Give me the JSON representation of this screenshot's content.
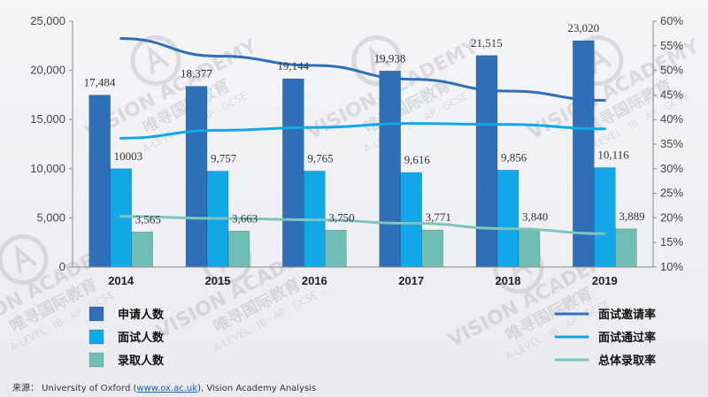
{
  "chart_data": {
    "type": "bar",
    "categories": [
      "2014",
      "2015",
      "2016",
      "2017",
      "2018",
      "2019"
    ],
    "y_left": {
      "ylim": [
        0,
        25000
      ],
      "ticks": [
        "0",
        "5,000",
        "10,000",
        "15,000",
        "20,000",
        "25,000"
      ],
      "tick_values": [
        0,
        5000,
        10000,
        15000,
        20000,
        25000
      ]
    },
    "y_right": {
      "ylim": [
        10,
        60
      ],
      "ticks": [
        "10%",
        "15%",
        "20%",
        "25%",
        "30%",
        "35%",
        "40%",
        "45%",
        "50%",
        "55%",
        "60%"
      ],
      "tick_values": [
        10,
        15,
        20,
        25,
        30,
        35,
        40,
        45,
        50,
        55,
        60
      ]
    },
    "bar_series": [
      {
        "name": "申请人数",
        "color": "#2e6fb7",
        "values": [
          17484,
          18377,
          19144,
          19938,
          21515,
          23020
        ],
        "labels": [
          "17,484",
          "18,377",
          "19,144",
          "19,938",
          "21,515",
          "23,020"
        ]
      },
      {
        "name": "面试人数",
        "color": "#12a8e8",
        "values": [
          10003,
          9757,
          9765,
          9616,
          9856,
          10116
        ],
        "labels": [
          "10003",
          "9,757",
          "9,765",
          "9,616",
          "9,856",
          "10,116"
        ]
      },
      {
        "name": "录取人数",
        "color": "#6fbdb4",
        "values": [
          3565,
          3663,
          3750,
          3771,
          3840,
          3889
        ],
        "labels": [
          "3,565",
          "3,663",
          "3,750",
          "3,771",
          "3,840",
          "3,889"
        ]
      }
    ],
    "line_series": [
      {
        "name": "面试邀请率",
        "color": "#2e6fb7",
        "values": [
          56.5,
          52.9,
          51.0,
          48.2,
          45.8,
          43.9
        ]
      },
      {
        "name": "面试通过率",
        "color": "#12a8e8",
        "values": [
          36.2,
          37.8,
          38.4,
          39.2,
          39.0,
          38.1
        ]
      },
      {
        "name": "总体录取率",
        "color": "#7fc4bd",
        "values": [
          20.3,
          19.9,
          19.6,
          18.9,
          17.8,
          16.8
        ]
      }
    ],
    "legend_placement": "bottom",
    "grid": false
  },
  "source": {
    "prefix": "来源：  University of Oxford (",
    "link": "www.ox.ac.uk",
    "suffix": "), Vision Academy Analysis"
  },
  "watermark": {
    "brand": "VISION ACADEMY",
    "cn": "唯寻国际教育",
    "sub": "A-LEVEL · IB · AP · GCSE"
  }
}
